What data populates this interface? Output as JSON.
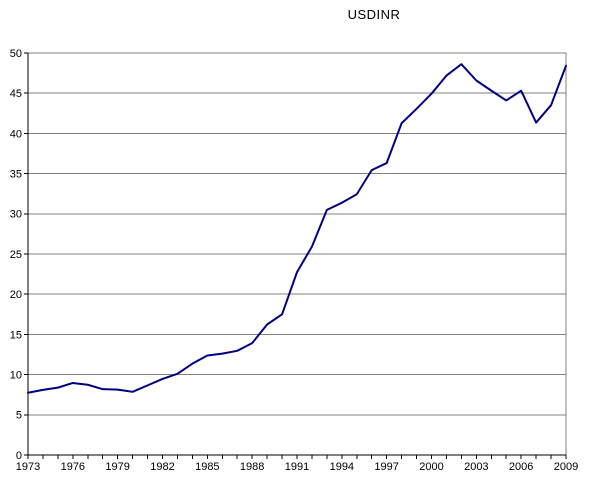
{
  "chart_data": {
    "type": "line",
    "title": "USDINR",
    "legend": "none",
    "grid": "horizontal",
    "background": "#ffffff",
    "line_color": "#000080",
    "gridline_color": "#808080",
    "axis_color": "#000000",
    "ylim": [
      0,
      50
    ],
    "ytick_step": 5,
    "ytick_labels": [
      "0",
      "5",
      "10",
      "15",
      "20",
      "25",
      "30",
      "35",
      "40",
      "45",
      "50"
    ],
    "xtick_labels": [
      "1973",
      "1976",
      "1979",
      "1982",
      "1985",
      "1988",
      "1991",
      "1994",
      "1997",
      "2000",
      "2003",
      "2006",
      "2009"
    ],
    "x_label_every": 3,
    "categories": [
      1973,
      1974,
      1975,
      1976,
      1977,
      1978,
      1979,
      1980,
      1981,
      1982,
      1983,
      1984,
      1985,
      1986,
      1987,
      1988,
      1989,
      1990,
      1991,
      1992,
      1993,
      1994,
      1995,
      1996,
      1997,
      1998,
      1999,
      2000,
      2001,
      2002,
      2003,
      2004,
      2005,
      2006,
      2007,
      2008,
      2009
    ],
    "values": [
      7.74,
      8.1,
      8.38,
      8.96,
      8.74,
      8.19,
      8.13,
      7.86,
      8.66,
      9.46,
      10.1,
      11.36,
      12.37,
      12.61,
      12.96,
      13.92,
      16.23,
      17.5,
      22.74,
      25.92,
      30.49,
      31.37,
      32.43,
      35.43,
      36.31,
      41.26,
      43.06,
      44.94,
      47.19,
      48.61,
      46.58,
      45.32,
      44.1,
      45.31,
      41.35,
      43.51,
      48.41
    ],
    "series": [
      {
        "name": "USDINR",
        "color": "#000080"
      }
    ]
  }
}
